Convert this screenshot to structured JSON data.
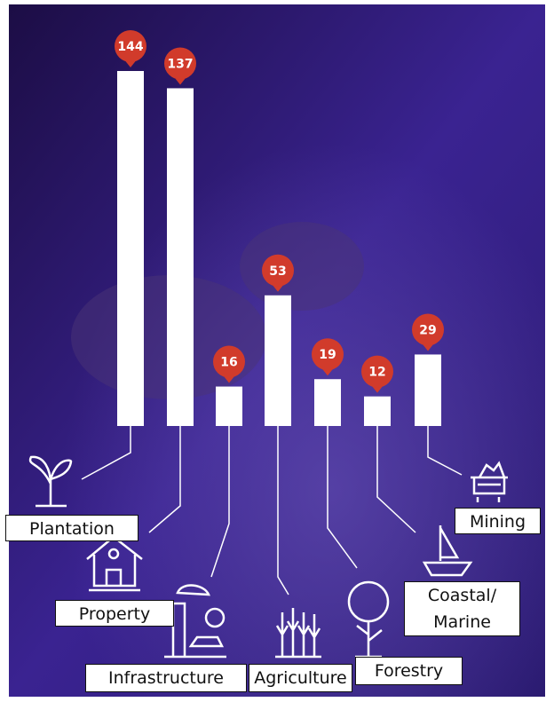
{
  "chart_data": {
    "type": "bar",
    "categories": [
      "Plantation",
      "Property",
      "Infrastructure",
      "Agriculture",
      "Forestry",
      "Coastal/\nMarine",
      "Mining"
    ],
    "values": [
      144,
      137,
      16,
      53,
      19,
      12,
      29
    ],
    "color": "#ffffff",
    "label_color": "#d13b2b"
  }
}
